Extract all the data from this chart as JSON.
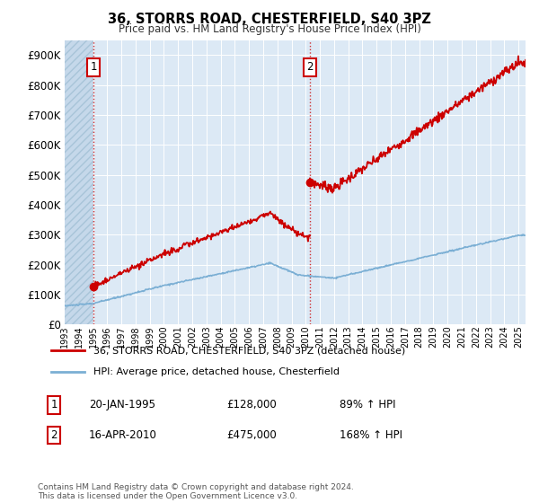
{
  "title1": "36, STORRS ROAD, CHESTERFIELD, S40 3PZ",
  "title2": "Price paid vs. HM Land Registry's House Price Index (HPI)",
  "legend_line1": "36, STORRS ROAD, CHESTERFIELD, S40 3PZ (detached house)",
  "legend_line2": "HPI: Average price, detached house, Chesterfield",
  "annotation1_date": "20-JAN-1995",
  "annotation1_price": "£128,000",
  "annotation1_hpi": "89% ↑ HPI",
  "annotation2_date": "16-APR-2010",
  "annotation2_price": "£475,000",
  "annotation2_hpi": "168% ↑ HPI",
  "footnote": "Contains HM Land Registry data © Crown copyright and database right 2024.\nThis data is licensed under the Open Government Licence v3.0.",
  "property_color": "#cc0000",
  "hpi_color": "#7bafd4",
  "background_color": "#dce9f5",
  "ylim": [
    0,
    950000
  ],
  "yticks": [
    0,
    100000,
    200000,
    300000,
    400000,
    500000,
    600000,
    700000,
    800000,
    900000
  ],
  "transaction1_x": 1995.05,
  "transaction1_y": 128000,
  "transaction2_x": 2010.29,
  "transaction2_y": 475000,
  "xlim_left": 1993,
  "xlim_right": 2025.5
}
